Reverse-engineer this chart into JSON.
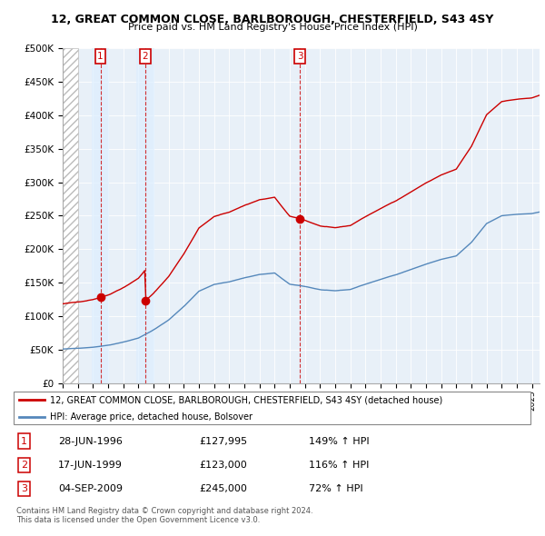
{
  "title1": "12, GREAT COMMON CLOSE, BARLBOROUGH, CHESTERFIELD, S43 4SY",
  "title2": "Price paid vs. HM Land Registry's House Price Index (HPI)",
  "legend_line1": "12, GREAT COMMON CLOSE, BARLBOROUGH, CHESTERFIELD, S43 4SY (detached house)",
  "legend_line2": "HPI: Average price, detached house, Bolsover",
  "footer1": "Contains HM Land Registry data © Crown copyright and database right 2024.",
  "footer2": "This data is licensed under the Open Government Licence v3.0.",
  "sales": [
    {
      "label": "1",
      "date": "28-JUN-1996",
      "price": 127995,
      "year": 1996.49,
      "pct": "149%",
      "dir": "↑"
    },
    {
      "label": "2",
      "date": "17-JUN-1999",
      "price": 123000,
      "year": 1999.46,
      "pct": "116%",
      "dir": "↑"
    },
    {
      "label": "3",
      "date": "04-SEP-2009",
      "price": 245000,
      "year": 2009.67,
      "pct": "72%",
      "dir": "↑"
    }
  ],
  "red_line_color": "#cc0000",
  "blue_line_color": "#5588bb",
  "grid_color": "#ccddee",
  "chart_bg_color": "#e8f0f8",
  "hatch_color": "#bbbbbb",
  "ylim": [
    0,
    500000
  ],
  "xlim_start": 1994.0,
  "xlim_end": 2025.5,
  "background_color": "#ffffff"
}
